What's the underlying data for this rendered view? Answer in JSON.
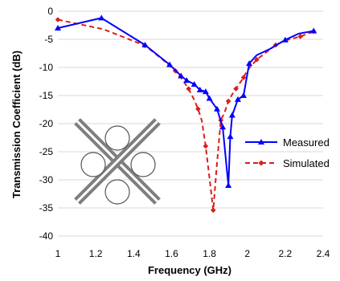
{
  "chart_data": {
    "type": "line",
    "title": "",
    "xlabel": "Frequency (GHz)",
    "ylabel": "Transmission Coefficient (dB)",
    "xlim": [
      1,
      2.4
    ],
    "ylim": [
      -40,
      0
    ],
    "xticks": [
      "1",
      "1.2",
      "1.4",
      "1.6",
      "1.8",
      "2",
      "2.2",
      "2.4"
    ],
    "yticks": [
      "0",
      "-5",
      "-10",
      "-15",
      "-20",
      "-25",
      "-30",
      "-35",
      "-40"
    ],
    "grid": "horizontal",
    "legend_position": "right",
    "series": [
      {
        "name": "Measured",
        "color": "#0000ff",
        "line_style": "solid",
        "marker": "triangle",
        "x": [
          1.0,
          1.23,
          1.46,
          1.59,
          1.65,
          1.68,
          1.72,
          1.75,
          1.78,
          1.8,
          1.84,
          1.87,
          1.9,
          1.91,
          1.92,
          1.95,
          1.98,
          2.01,
          2.05,
          2.12,
          2.2,
          2.27,
          2.35
        ],
        "y": [
          -3.0,
          -1.2,
          -6.0,
          -9.5,
          -11.5,
          -12.3,
          -13.0,
          -14.0,
          -14.3,
          -15.5,
          -17.4,
          -20.6,
          -31.0,
          -22.3,
          -18.5,
          -15.7,
          -15.0,
          -9.3,
          -7.8,
          -6.7,
          -5.1,
          -4.0,
          -3.5
        ],
        "marked_indices": [
          0,
          1,
          2,
          3,
          4,
          5,
          6,
          7,
          8,
          9,
          10,
          11,
          12,
          13,
          14,
          15,
          16,
          17,
          20,
          22
        ]
      },
      {
        "name": "Simulated",
        "color": "#dd1c1c",
        "line_style": "dashed",
        "marker": "diamond",
        "x": [
          1.0,
          1.24,
          1.46,
          1.56,
          1.62,
          1.66,
          1.69,
          1.72,
          1.74,
          1.76,
          1.78,
          1.8,
          1.82,
          1.84,
          1.86,
          1.88,
          1.9,
          1.92,
          1.94,
          1.96,
          1.98,
          2.0,
          2.05,
          2.1,
          2.15,
          2.2,
          2.28,
          2.35
        ],
        "y": [
          -1.5,
          -3.2,
          -6.1,
          -8.8,
          -10.6,
          -12.3,
          -13.8,
          -15.8,
          -17.4,
          -19.5,
          -24.0,
          -29.6,
          -35.4,
          -27.0,
          -19.4,
          -18.0,
          -16.0,
          -14.8,
          -13.8,
          -12.8,
          -11.8,
          -10.5,
          -8.6,
          -7.3,
          -6.0,
          -5.2,
          -4.5,
          -3.6
        ],
        "marked_indices": [
          0,
          2,
          4,
          6,
          8,
          10,
          12,
          14,
          16,
          18,
          20,
          22,
          24,
          26,
          27
        ]
      }
    ]
  }
}
